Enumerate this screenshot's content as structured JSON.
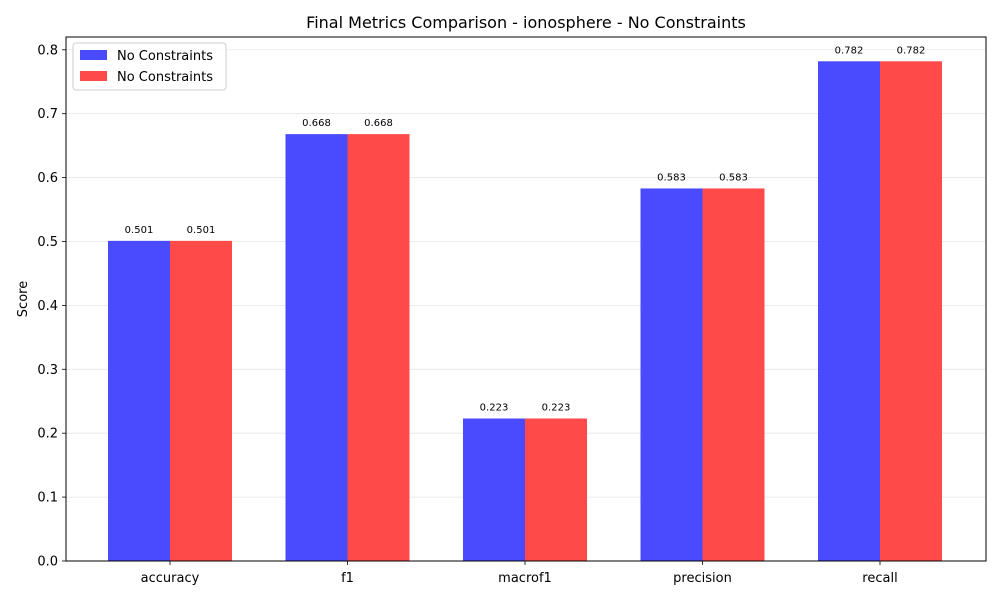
{
  "chart_data": {
    "type": "bar",
    "title": "Final Metrics Comparison - ionosphere - No Constraints",
    "xlabel": "",
    "ylabel": "Score",
    "categories": [
      "accuracy",
      "f1",
      "macrof1",
      "precision",
      "recall"
    ],
    "series": [
      {
        "name": "No Constraints",
        "color": "#4a4aff",
        "values": [
          0.501,
          0.668,
          0.223,
          0.583,
          0.782
        ]
      },
      {
        "name": "No Constraints",
        "color": "#ff4a4a",
        "values": [
          0.501,
          0.668,
          0.223,
          0.583,
          0.782
        ]
      }
    ],
    "data_labels": [
      [
        "0.501",
        "0.668",
        "0.223",
        "0.583",
        "0.782"
      ],
      [
        "0.501",
        "0.668",
        "0.223",
        "0.583",
        "0.782"
      ]
    ],
    "ylim": [
      0,
      0.82
    ],
    "yticks": [
      0.0,
      0.1,
      0.2,
      0.3,
      0.4,
      0.5,
      0.6,
      0.7,
      0.8
    ],
    "ytick_labels": [
      "0.0",
      "0.1",
      "0.2",
      "0.3",
      "0.4",
      "0.5",
      "0.6",
      "0.7",
      "0.8"
    ],
    "grid": "y",
    "legend_position": "top-left"
  }
}
